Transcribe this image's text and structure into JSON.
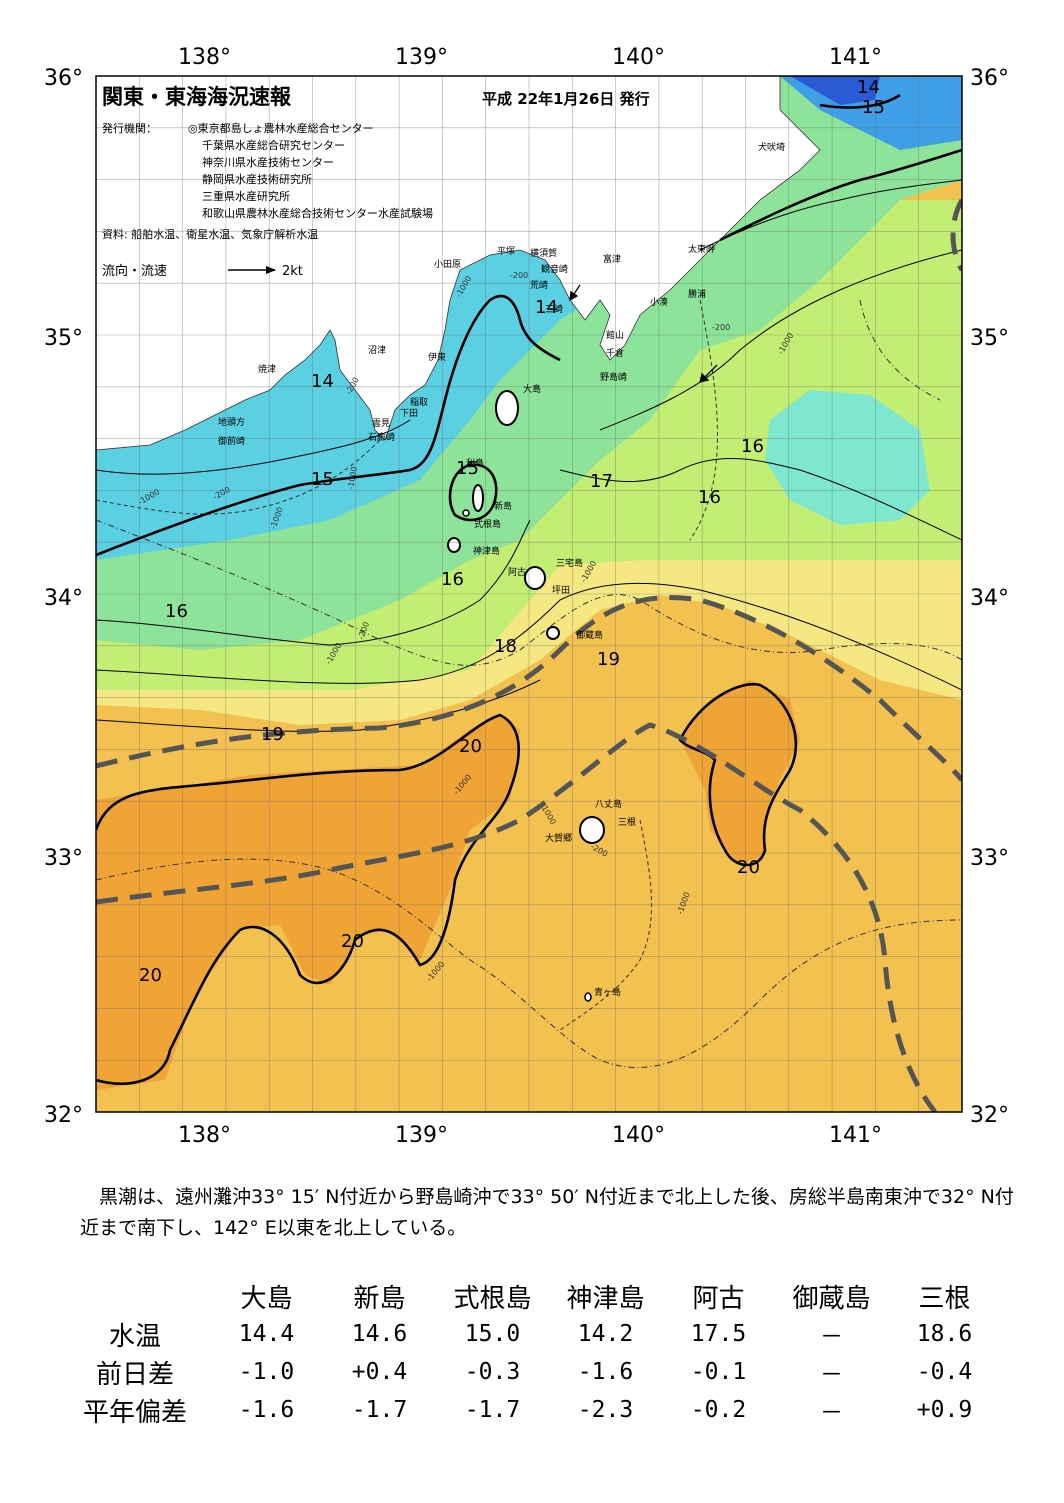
{
  "map": {
    "title": "関東・東海海況速報",
    "issue_date": "平成 22年1月26日 発行",
    "publisher_label": "発行機関：",
    "publishers": [
      "◎東京都島しょ農林水産総合センター",
      "千葉県水産総合研究センター",
      "神奈川県水産技術センター",
      "静岡県水産技術研究所",
      "三重県水産研究所",
      "和歌山県農林水産総合技術センター水産試験場"
    ],
    "source": "資料: 船舶水温、衛星水温、気象庁解析水温",
    "flow_legend_label": "流向・流速",
    "flow_legend_value": "2kt",
    "lon_ticks": [
      "138°",
      "139°",
      "140°",
      "141°"
    ],
    "lat_ticks": [
      "36°",
      "35°",
      "34°",
      "33°",
      "32°"
    ],
    "isotherm_labels": [
      "14",
      "15",
      "14",
      "14",
      "15",
      "15",
      "16",
      "16",
      "16",
      "16",
      "17",
      "18",
      "19",
      "19",
      "20",
      "20",
      "20",
      "20"
    ],
    "depth_labels": [
      "-200",
      "-1000",
      "-200",
      "-1000",
      "-200",
      "-1000",
      "-200",
      "-1000",
      "-1000",
      "-1000",
      "-200",
      "-1000",
      "-1000",
      "-1000",
      "-1000",
      "-200",
      "-1000"
    ],
    "place_names": [
      "犬吠埼",
      "太東岬",
      "勝浦",
      "小湊",
      "富津",
      "横須賀",
      "観音崎",
      "平塚",
      "荒崎",
      "三崎",
      "小田原",
      "館山",
      "千倉",
      "野島崎",
      "沼津",
      "伊東",
      "焼津",
      "稲取",
      "下田",
      "雲見",
      "石廊崎",
      "地頭方",
      "御前崎",
      "大島",
      "利島",
      "新島",
      "式根島",
      "神津島",
      "三宅島",
      "阿古",
      "坪田",
      "御蔵島",
      "八丈島",
      "三根",
      "大賀郷",
      "青ヶ島"
    ]
  },
  "summary": "黒潮は、遠州灘沖33° 15′ N付近から野島崎沖で33° 50′ N付近まで北上した後、房総半島南東沖で32° N付近まで南下し、142° E以東を北上している。",
  "stats": {
    "columns": [
      "大島",
      "新島",
      "式根島",
      "神津島",
      "阿古",
      "御蔵島",
      "三根"
    ],
    "rows": [
      {
        "label": "水温",
        "values": [
          "14.4",
          "14.6",
          "15.0",
          "14.2",
          "17.5",
          "－",
          "18.6"
        ]
      },
      {
        "label": "前日差",
        "values": [
          "-1.0",
          "+0.4",
          "-0.3",
          "-1.6",
          "-0.1",
          "－",
          "-0.4"
        ]
      },
      {
        "label": "平年偏差",
        "values": [
          "-1.6",
          "-1.7",
          "-1.7",
          "-2.3",
          "-0.2",
          "－",
          "+0.9"
        ]
      }
    ]
  },
  "colors": {
    "warm": "#f2c150",
    "orange": "#f0a436",
    "yellow": "#f5e882",
    "yellowgreen": "#c3ee74",
    "green": "#8ee39a",
    "cyan": "#5ad0e2",
    "blue": "#3f9fe6",
    "kuroshio_axis": "#555555"
  }
}
